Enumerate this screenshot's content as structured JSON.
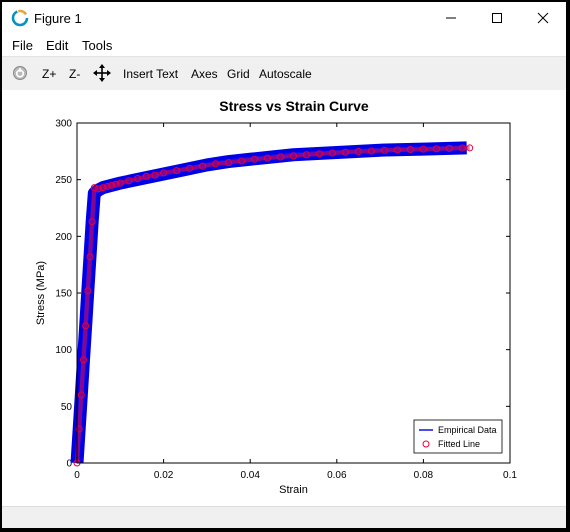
{
  "window": {
    "title": "Figure 1",
    "icon": "octave-logo-icon",
    "controls": [
      "minimize-icon",
      "maximize-icon",
      "close-icon"
    ]
  },
  "menu": {
    "items": [
      "File",
      "Edit",
      "Tools"
    ]
  },
  "toolbar": {
    "rotate_icon": "rotate-icon",
    "zoom_in": "Z+",
    "zoom_out": "Z-",
    "pan_icon": "pan-arrows-icon",
    "insert_text": "Insert Text",
    "axes": "Axes",
    "grid": "Grid",
    "autoscale": "Autoscale"
  },
  "chart_data": {
    "type": "line",
    "title": "Stress vs Strain Curve",
    "xlabel": "Strain",
    "ylabel": "Stress (MPa)",
    "xlim": [
      0,
      0.1
    ],
    "ylim": [
      0,
      300
    ],
    "x_ticks": [
      "0",
      "0.02",
      "0.04",
      "0.06",
      "0.08",
      "0.1"
    ],
    "y_ticks": [
      "0",
      "50",
      "100",
      "150",
      "200",
      "250",
      "300"
    ],
    "grid": false,
    "legend_position": "bottom-right",
    "colors": {
      "empirical": "#0000e6",
      "fitted": "#e6003c"
    },
    "series": [
      {
        "name": "Empirical Data",
        "style": "thick-band",
        "x": [
          0,
          0.0005,
          0.001,
          0.0015,
          0.002,
          0.0025,
          0.003,
          0.0035,
          0.004,
          0.005,
          0.006,
          0.008,
          0.01,
          0.015,
          0.02,
          0.025,
          0.03,
          0.035,
          0.04,
          0.045,
          0.05,
          0.055,
          0.06,
          0.065,
          0.07,
          0.075,
          0.08,
          0.085,
          0.09
        ],
        "y": [
          0,
          30,
          60,
          91,
          121,
          152,
          182,
          213,
          238,
          241,
          243,
          245,
          247,
          251,
          255,
          259,
          263,
          266,
          268,
          270,
          272,
          273,
          274,
          275,
          276,
          276.5,
          277,
          277.5,
          278
        ]
      },
      {
        "name": "Fitted Line",
        "style": "circles",
        "x": [
          0,
          0.0005,
          0.001,
          0.0015,
          0.002,
          0.0025,
          0.003,
          0.0035,
          0.004,
          0.005,
          0.006,
          0.007,
          0.008,
          0.009,
          0.01,
          0.012,
          0.014,
          0.016,
          0.018,
          0.02,
          0.023,
          0.026,
          0.029,
          0.032,
          0.035,
          0.038,
          0.041,
          0.044,
          0.047,
          0.05,
          0.053,
          0.056,
          0.059,
          0.062,
          0.065,
          0.068,
          0.071,
          0.074,
          0.077,
          0.08,
          0.083,
          0.086,
          0.089,
          0.0907
        ],
        "y": [
          0,
          30,
          60,
          91,
          121,
          152,
          182,
          213,
          243,
          242,
          243,
          244,
          245,
          246,
          247,
          249,
          251,
          253,
          254,
          256,
          258,
          260,
          262,
          264,
          265,
          266.5,
          268,
          269,
          270,
          271,
          272,
          272.8,
          273.5,
          274.2,
          274.8,
          275.3,
          275.8,
          276.2,
          276.6,
          277,
          277.3,
          277.6,
          277.9,
          278
        ]
      }
    ]
  }
}
